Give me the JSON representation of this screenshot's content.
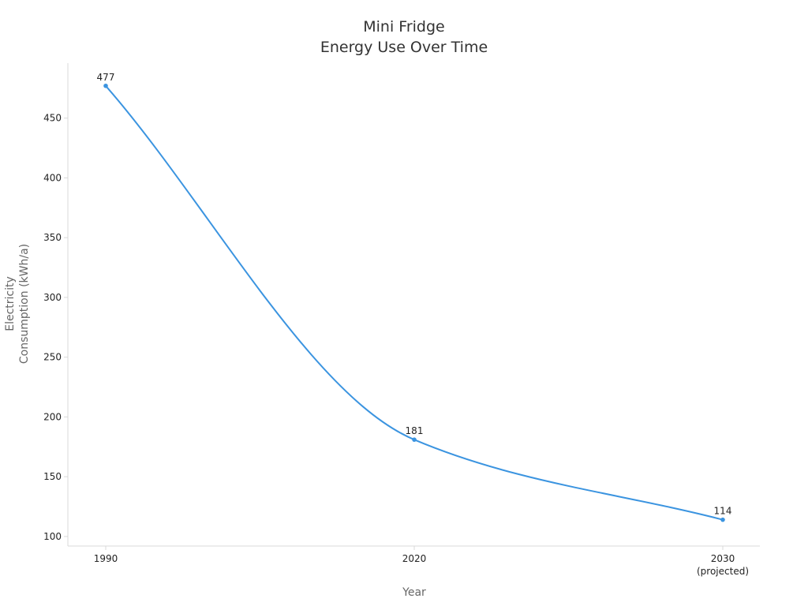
{
  "chart_data": {
    "type": "line",
    "title_lines": [
      "Mini Fridge",
      "Energy Use Over Time"
    ],
    "xlabel": "Year",
    "ylabel_lines": [
      "Electricity",
      "Consumption (kWh/a)"
    ],
    "x": [
      1990,
      2020,
      2030
    ],
    "x_tick_labels": [
      [
        "1990"
      ],
      [
        "2020"
      ],
      [
        "2030",
        "(projected)"
      ]
    ],
    "y_ticks": [
      100,
      150,
      200,
      250,
      300,
      350,
      400,
      450
    ],
    "y_tick_labels": [
      "100",
      "150",
      "200",
      "250",
      "300",
      "350",
      "400",
      "450"
    ],
    "series": [
      {
        "values": [
          477,
          181,
          114
        ],
        "data_labels": [
          "477",
          "181",
          "114"
        ],
        "color": "#3b94e0"
      }
    ],
    "ylim": [
      92,
      496
    ],
    "grid": false,
    "axis_color": "#d9d9d9"
  }
}
